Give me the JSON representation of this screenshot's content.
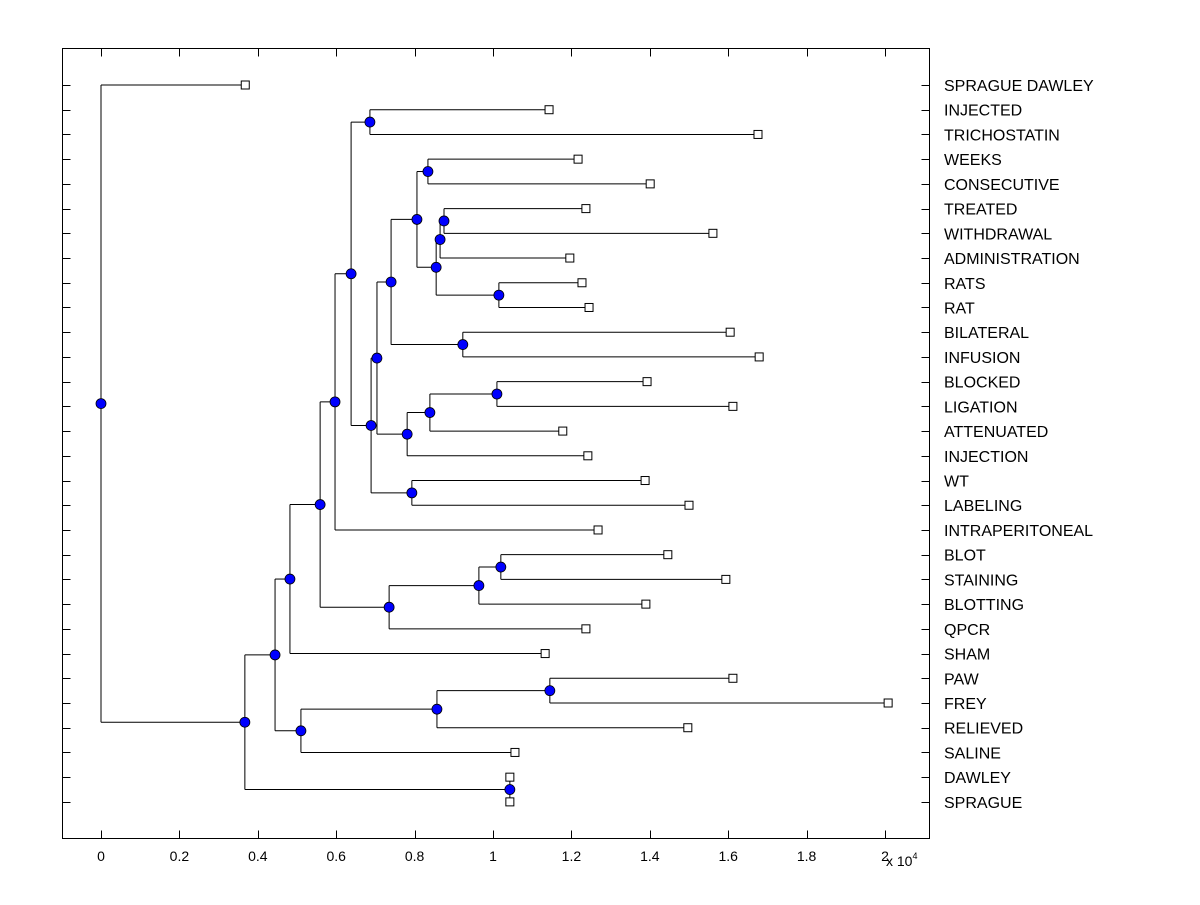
{
  "chart_data": {
    "type": "dendrogram",
    "title": "",
    "xlabel": "",
    "ylabel": "",
    "x_exponent_label": "x 10",
    "x_exponent": "4",
    "xlim": [
      -0.1,
      2.11
    ],
    "xticks": [
      0,
      0.2,
      0.4,
      0.6,
      0.8,
      1,
      1.2,
      1.4,
      1.6,
      1.8,
      2
    ],
    "xtick_labels": [
      "0",
      "0.2",
      "0.4",
      "0.6",
      "0.8",
      "1",
      "1.2",
      "1.4",
      "1.6",
      "1.8",
      "2"
    ],
    "grid": false,
    "colors": {
      "node": "#0000ff",
      "leaf": "#ffffff",
      "line": "#000000"
    },
    "leaves": [
      {
        "label": "SPRAGUE DAWLEY",
        "height": 0.368
      },
      {
        "label": "INJECTED",
        "height": 1.143
      },
      {
        "label": "TRICHOSTATIN",
        "height": 1.676
      },
      {
        "label": "WEEKS",
        "height": 1.217
      },
      {
        "label": "CONSECUTIVE",
        "height": 1.401
      },
      {
        "label": "TREATED",
        "height": 1.237
      },
      {
        "label": "WITHDRAWAL",
        "height": 1.561
      },
      {
        "label": "ADMINISTRATION",
        "height": 1.196
      },
      {
        "label": "RATS",
        "height": 1.227
      },
      {
        "label": "RAT",
        "height": 1.245
      },
      {
        "label": "BILATERAL",
        "height": 1.605
      },
      {
        "label": "INFUSION",
        "height": 1.679
      },
      {
        "label": "BLOCKED",
        "height": 1.393
      },
      {
        "label": "LIGATION",
        "height": 1.612
      },
      {
        "label": "ATTENUATED",
        "height": 1.178
      },
      {
        "label": "INJECTION",
        "height": 1.242
      },
      {
        "label": "WT",
        "height": 1.388
      },
      {
        "label": "LABELING",
        "height": 1.5
      },
      {
        "label": "INTRAPERITONEAL",
        "height": 1.268
      },
      {
        "label": "BLOT",
        "height": 1.446
      },
      {
        "label": "STAINING",
        "height": 1.594
      },
      {
        "label": "BLOTTING",
        "height": 1.39
      },
      {
        "label": "QPCR",
        "height": 1.237
      },
      {
        "label": "SHAM",
        "height": 1.133
      },
      {
        "label": "PAW",
        "height": 1.612
      },
      {
        "label": "FREY",
        "height": 2.008
      },
      {
        "label": "RELIEVED",
        "height": 1.497
      },
      {
        "label": "SALINE",
        "height": 1.056
      },
      {
        "label": "DAWLEY",
        "height": 1.043
      },
      {
        "label": "SPRAGUE",
        "height": 1.043
      }
    ],
    "root": "n0",
    "nodes": {
      "n0": {
        "height": 0.0,
        "children": [
          "L0",
          "n1"
        ]
      },
      "n1": {
        "height": 0.367,
        "children": [
          "n2",
          "n27"
        ]
      },
      "n2": {
        "height": 0.444,
        "children": [
          "n3",
          "n24"
        ]
      },
      "n3": {
        "height": 0.482,
        "children": [
          "n4",
          "L23"
        ]
      },
      "n4": {
        "height": 0.559,
        "children": [
          "n5",
          "n20"
        ]
      },
      "n5": {
        "height": 0.597,
        "children": [
          "n6",
          "L18"
        ]
      },
      "n6": {
        "height": 0.638,
        "children": [
          "n7",
          "n8"
        ]
      },
      "n7": {
        "height": 0.686,
        "children": [
          "L1",
          "L2"
        ]
      },
      "n8": {
        "height": 0.689,
        "children": [
          "n9",
          "n19"
        ]
      },
      "n9": {
        "height": 0.704,
        "children": [
          "n10",
          "n16"
        ]
      },
      "n10": {
        "height": 0.74,
        "children": [
          "n11",
          "n15"
        ]
      },
      "n11": {
        "height": 0.806,
        "children": [
          "n12",
          "n13"
        ]
      },
      "n12": {
        "height": 0.834,
        "children": [
          "L3",
          "L4"
        ]
      },
      "n13": {
        "height": 0.855,
        "children": [
          "n13a",
          "n13b"
        ]
      },
      "n13a": {
        "height": 0.865,
        "children": [
          "n13c",
          "L7"
        ]
      },
      "n13c": {
        "height": 0.875,
        "children": [
          "L5",
          "L6"
        ]
      },
      "n13b": {
        "height": 1.015,
        "children": [
          "L8",
          "L9"
        ]
      },
      "n15": {
        "height": 0.923,
        "children": [
          "L10",
          "L11"
        ]
      },
      "n16": {
        "height": 0.781,
        "children": [
          "n17",
          "L15"
        ]
      },
      "n17": {
        "height": 0.839,
        "children": [
          "n18",
          "L14"
        ]
      },
      "n18": {
        "height": 1.01,
        "children": [
          "L12",
          "L13"
        ]
      },
      "n19": {
        "height": 0.793,
        "children": [
          "L16",
          "L17"
        ]
      },
      "n20": {
        "height": 0.735,
        "children": [
          "n21",
          "L22"
        ]
      },
      "n21": {
        "height": 0.964,
        "children": [
          "n22",
          "L21"
        ]
      },
      "n22": {
        "height": 1.02,
        "children": [
          "L19",
          "L20"
        ]
      },
      "n24": {
        "height": 0.51,
        "children": [
          "n25",
          "L27"
        ]
      },
      "n25": {
        "height": 0.857,
        "children": [
          "n26",
          "L26"
        ]
      },
      "n26": {
        "height": 1.145,
        "children": [
          "L24",
          "L25"
        ]
      },
      "n27": {
        "height": 1.043,
        "children": [
          "L28",
          "L29"
        ]
      }
    }
  }
}
